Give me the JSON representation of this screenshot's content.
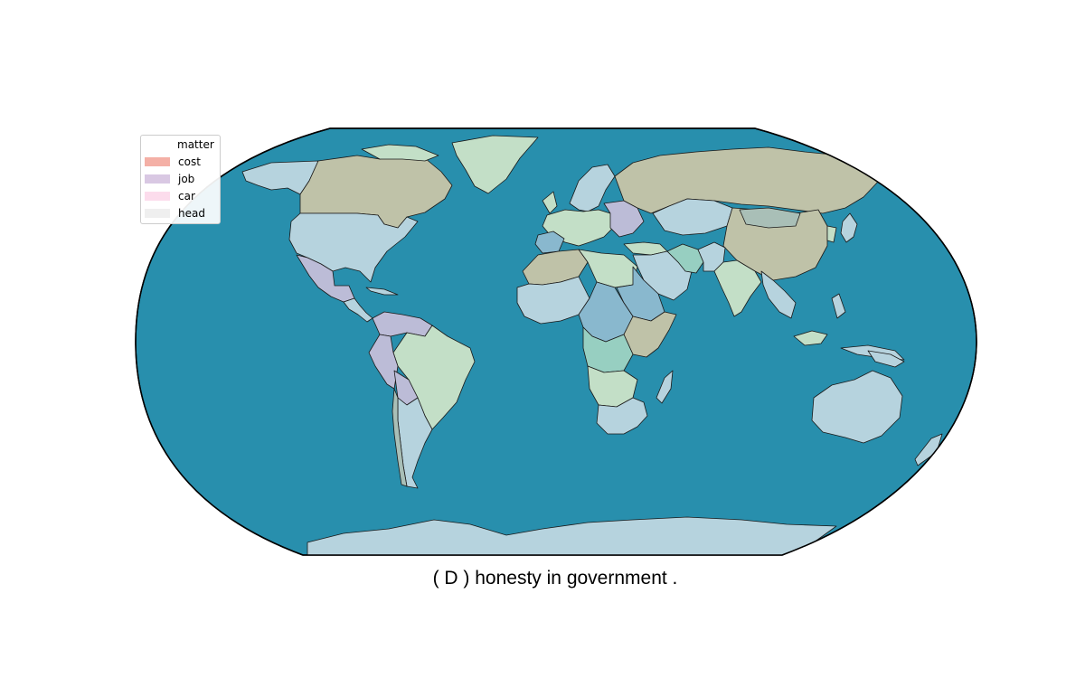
{
  "colors": {
    "ocean": "#288fad",
    "cost": "#f4b0a6",
    "job": "#d9c8e3",
    "car": "#fcdcec",
    "head": "#efefef",
    "land_light_blue": "#b6d3de",
    "land_olive": "#bfc2a8",
    "land_green": "#c3dfc7",
    "land_blue": "#89b8ce",
    "land_lavender": "#bcbcd7",
    "land_teal": "#97cfc1",
    "land_gray": "#a9bfb7"
  },
  "legend": {
    "title": "matter",
    "items": [
      {
        "label": "cost",
        "color": "#f4b0a6"
      },
      {
        "label": "job",
        "color": "#d9c8e3"
      },
      {
        "label": "car",
        "color": "#fcdcec"
      },
      {
        "label": "head",
        "color": "#efefef"
      }
    ]
  },
  "caption": "( D ) honesty in government ."
}
